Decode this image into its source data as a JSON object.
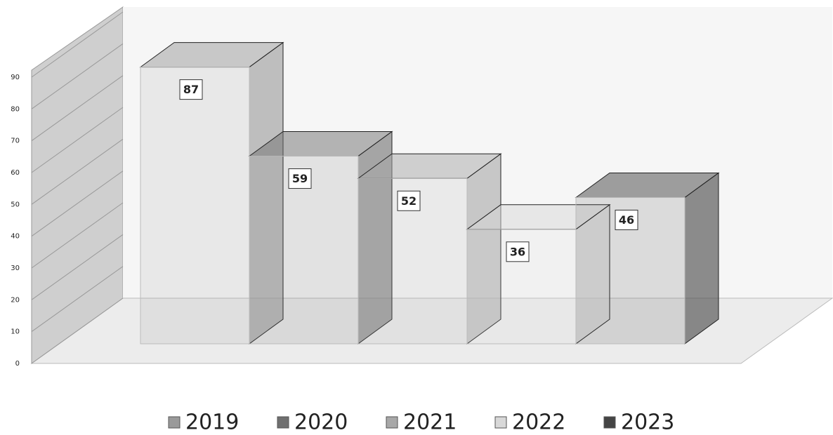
{
  "chart_data": {
    "type": "bar3d",
    "categories": [
      null
    ],
    "series": [
      {
        "name": "2019",
        "color": "#9a9a9a",
        "values": [
          87
        ]
      },
      {
        "name": "2020",
        "color": "#6f6f6f",
        "values": [
          59
        ]
      },
      {
        "name": "2021",
        "color": "#a8a8a8",
        "values": [
          52
        ]
      },
      {
        "name": "2022",
        "color": "#d8d8d8",
        "values": [
          36
        ]
      },
      {
        "name": "2023",
        "color": "#444444",
        "values": [
          46
        ]
      }
    ],
    "ylim": [
      0,
      90
    ],
    "yticks": [
      0,
      10,
      20,
      30,
      40,
      50,
      60,
      70,
      80,
      90
    ],
    "grid": true,
    "legend": "bottom"
  }
}
